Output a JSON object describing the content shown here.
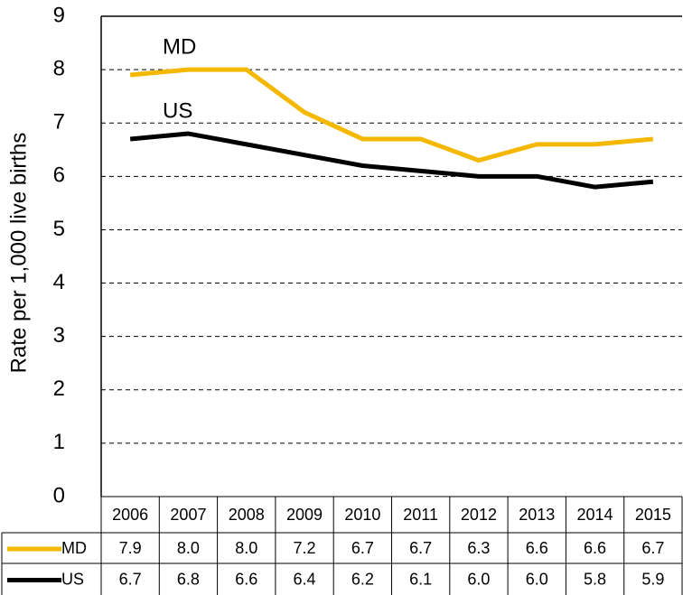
{
  "chart_data": {
    "type": "line",
    "y_axis_label": "Rate per 1,000 live births",
    "categories": [
      "2006",
      "2007",
      "2008",
      "2009",
      "2010",
      "2011",
      "2012",
      "2013",
      "2014",
      "2015"
    ],
    "series": [
      {
        "name": "MD",
        "color": "#f5b800",
        "values": [
          7.9,
          8.0,
          8.0,
          7.2,
          6.7,
          6.7,
          6.3,
          6.6,
          6.6,
          6.7
        ],
        "value_labels": [
          "7.9",
          "8.0",
          "8.0",
          "7.2",
          "6.7",
          "6.7",
          "6.3",
          "6.6",
          "6.6",
          "6.7"
        ]
      },
      {
        "name": "US",
        "color": "#000000",
        "values": [
          6.7,
          6.8,
          6.6,
          6.4,
          6.2,
          6.1,
          6.0,
          6.0,
          5.8,
          5.9
        ],
        "value_labels": [
          "6.7",
          "6.8",
          "6.6",
          "6.4",
          "6.2",
          "6.1",
          "6.0",
          "6.0",
          "5.8",
          "5.9"
        ]
      }
    ],
    "ylim": [
      0,
      9
    ],
    "yticks": [
      0,
      1,
      2,
      3,
      4,
      5,
      6,
      7,
      8,
      9
    ],
    "grid": true,
    "data_table": true
  }
}
